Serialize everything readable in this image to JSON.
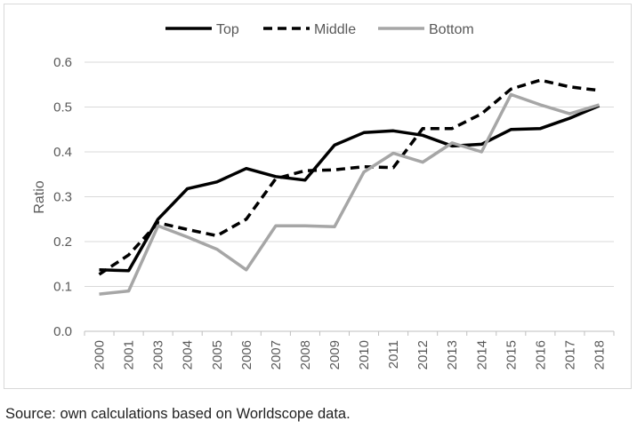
{
  "chart_data": {
    "type": "line",
    "title": "",
    "xlabel": "",
    "ylabel": "Ratio",
    "ylim": [
      0,
      0.6
    ],
    "yticks": [
      "0.0",
      "0.1",
      "0.2",
      "0.3",
      "0.4",
      "0.5",
      "0.6"
    ],
    "categories": [
      "2000",
      "2001",
      "2003",
      "2004",
      "2005",
      "2006",
      "2007",
      "2008",
      "2009",
      "2010",
      "2011",
      "2012",
      "2013",
      "2014",
      "2015",
      "2016",
      "2017",
      "2018"
    ],
    "legend_position": "top",
    "grid": "horizontal",
    "series": [
      {
        "name": "Top",
        "style": "solid",
        "color": "#000000",
        "values": [
          0.137,
          0.135,
          0.25,
          0.318,
          0.333,
          0.363,
          0.345,
          0.337,
          0.415,
          0.443,
          0.447,
          0.437,
          0.413,
          0.417,
          0.45,
          0.452,
          0.475,
          0.503
        ]
      },
      {
        "name": "Middle",
        "style": "dashed",
        "color": "#000000",
        "values": [
          0.127,
          0.17,
          0.242,
          0.227,
          0.213,
          0.25,
          0.34,
          0.358,
          0.36,
          0.367,
          0.365,
          0.452,
          0.452,
          0.485,
          0.54,
          0.56,
          0.545,
          0.537
        ]
      },
      {
        "name": "Bottom",
        "style": "solid",
        "color": "#a6a6a6",
        "values": [
          0.083,
          0.09,
          0.235,
          0.21,
          0.183,
          0.137,
          0.235,
          0.235,
          0.233,
          0.355,
          0.397,
          0.377,
          0.42,
          0.4,
          0.528,
          0.505,
          0.485,
          0.505
        ]
      }
    ]
  },
  "caption": "Source: own calculations based on Worldscope data."
}
